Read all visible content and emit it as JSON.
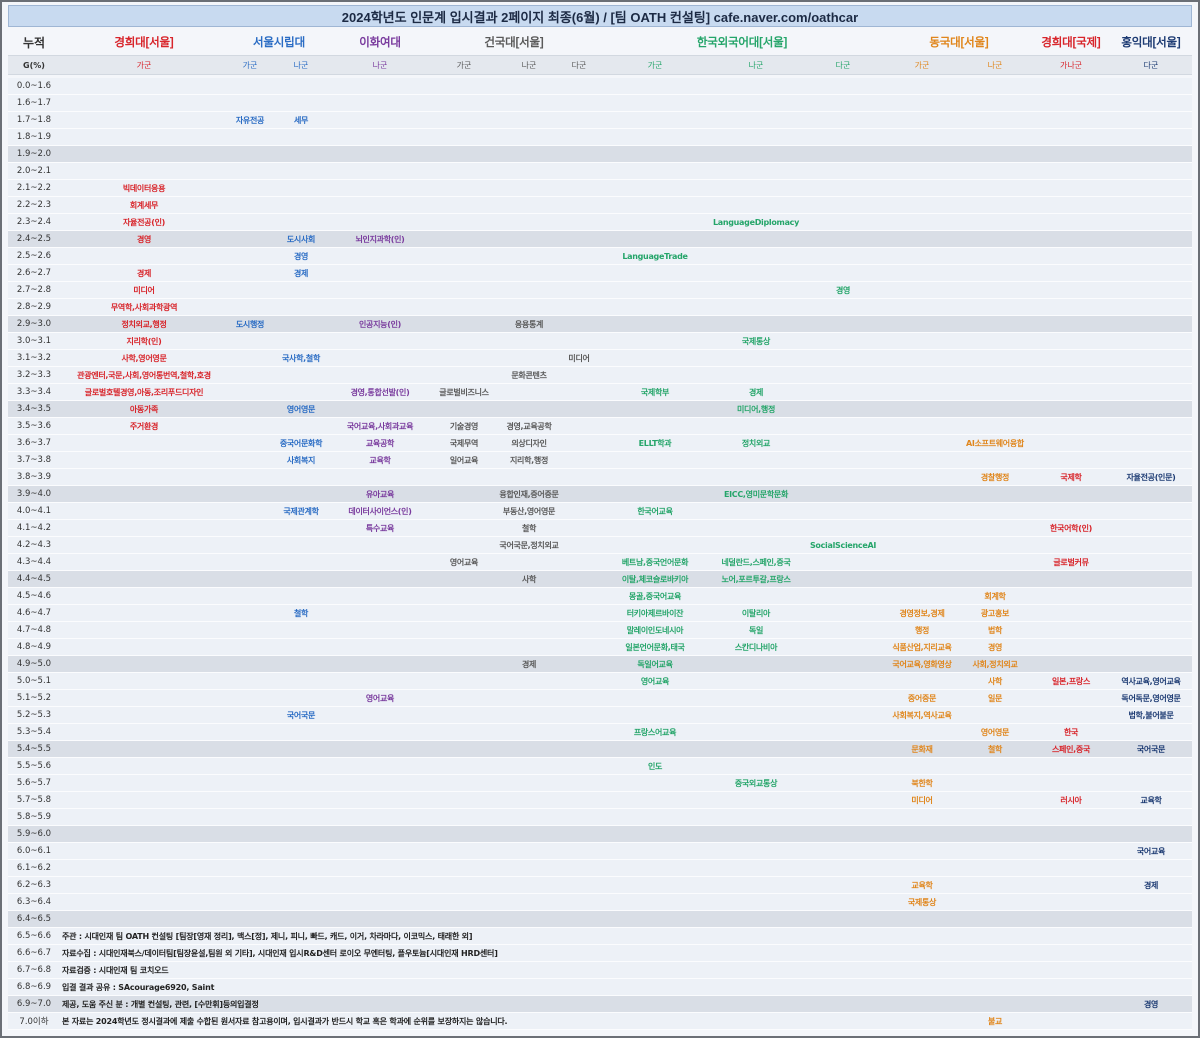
{
  "title": "2024학년도 인문계 입시결과 2페이지 최종(6월) / [팀 OATH 컨설팅] cafe.naver.com/oathcar",
  "header": {
    "cumulative": "누적",
    "g_label": "G(%)"
  },
  "universities": [
    {
      "name": "경희대[서울]",
      "color": "#d8252b",
      "groups": [
        "가군"
      ]
    },
    {
      "name": "서울시립대",
      "color": "#2a6cc4",
      "groups": [
        "가군",
        "나군"
      ]
    },
    {
      "name": "이화여대",
      "color": "#7a3c9e",
      "groups": [
        "나군"
      ]
    },
    {
      "name": "건국대[서울]",
      "color": "#5a5a5a",
      "groups": [
        "가군",
        "나군",
        "다군"
      ]
    },
    {
      "name": "한국외국어대[서울]",
      "color": "#25a56a",
      "groups": [
        "가군",
        "나군",
        "다군"
      ]
    },
    {
      "name": "동국대[서울]",
      "color": "#e0861c",
      "groups": [
        "가군",
        "나군"
      ]
    },
    {
      "name": "경희대[국제]",
      "color": "#d8252b",
      "groups": [
        "가나군"
      ]
    },
    {
      "name": "홍익대[서울]",
      "color": "#1d3b73",
      "groups": [
        "다군"
      ]
    }
  ],
  "rows": [
    {
      "range": "0.0~1.6",
      "cells": {}
    },
    {
      "range": "1.6~1.7",
      "cells": {}
    },
    {
      "range": "1.7~1.8",
      "cells": {
        "2": "자유전공",
        "3": "세무"
      }
    },
    {
      "range": "1.8~1.9",
      "cells": {}
    },
    {
      "range": "1.9~2.0",
      "cells": {}
    },
    {
      "range": "2.0~2.1",
      "cells": {}
    },
    {
      "range": "2.1~2.2",
      "cells": {
        "1": "빅데이터응용"
      }
    },
    {
      "range": "2.2~2.3",
      "cells": {
        "1": "회계세무"
      }
    },
    {
      "range": "2.3~2.4",
      "cells": {
        "1": "자율전공(인)",
        "9": "LanguageDiplomacy"
      }
    },
    {
      "range": "2.4~2.5",
      "cells": {
        "1": "경영",
        "3": "도시사회",
        "4": "뇌인지과학(인)"
      }
    },
    {
      "range": "2.5~2.6",
      "cells": {
        "3": "경영",
        "8": "LanguageTrade"
      }
    },
    {
      "range": "2.6~2.7",
      "cells": {
        "1": "경제",
        "3": "경제"
      }
    },
    {
      "range": "2.7~2.8",
      "cells": {
        "1": "미디어",
        "10": "경영"
      }
    },
    {
      "range": "2.8~2.9",
      "cells": {
        "1": "무역학,사회과학광역"
      }
    },
    {
      "range": "2.9~3.0",
      "cells": {
        "1": "정치외교,행정",
        "2": "도시행정",
        "4": "인공지능(인)",
        "6": "응용통계"
      }
    },
    {
      "range": "3.0~3.1",
      "cells": {
        "1": "지리학(인)",
        "9": "국제통상"
      }
    },
    {
      "range": "3.1~3.2",
      "cells": {
        "1": "사학,영어영문",
        "3": "국사학,철학",
        "7": "미디어"
      }
    },
    {
      "range": "3.2~3.3",
      "cells": {
        "1": "관광엔터,국문,사회,영어통번역,철학,호경",
        "6": "문화콘텐츠"
      }
    },
    {
      "range": "3.3~3.4",
      "cells": {
        "1": "글로벌호텔경영,아동,조리푸드디자인",
        "4": "경영,통합선발(인)",
        "5": "글로벌비즈니스",
        "8": "국제학부",
        "9": "경제"
      }
    },
    {
      "range": "3.4~3.5",
      "cells": {
        "1": "아동가족",
        "3": "영어영문",
        "9": "미디어,행정"
      }
    },
    {
      "range": "3.5~3.6",
      "cells": {
        "1": "주거환경",
        "4": "국어교육,사회과교육",
        "5": "기술경영",
        "6": "경영,교육공학"
      }
    },
    {
      "range": "3.6~3.7",
      "cells": {
        "3": "중국어문화학",
        "4": "교육공학",
        "5": "국제무역",
        "6": "의상디자인",
        "8": "ELLT학과",
        "9": "정치외교",
        "12": "AI소프트웨어융합"
      }
    },
    {
      "range": "3.7~3.8",
      "cells": {
        "3": "사회복지",
        "4": "교육학",
        "5": "일어교육",
        "6": "지리학,행정"
      }
    },
    {
      "range": "3.8~3.9",
      "cells": {
        "12": "경찰행정",
        "13": "국제학",
        "14": "자율전공(인문)"
      }
    },
    {
      "range": "3.9~4.0",
      "cells": {
        "4": "유아교육",
        "6": "융합인재,중어중문",
        "9": "EICC,영미문학문화"
      }
    },
    {
      "range": "4.0~4.1",
      "cells": {
        "3": "국제관계학",
        "4": "데이터사이언스(인)",
        "6": "부동산,영어영문",
        "8": "한국어교육"
      }
    },
    {
      "range": "4.1~4.2",
      "cells": {
        "4": "특수교육",
        "6": "철학",
        "13": "한국어학(인)"
      }
    },
    {
      "range": "4.2~4.3",
      "cells": {
        "6": "국어국문,정치외교",
        "10": "SocialScienceAI"
      }
    },
    {
      "range": "4.3~4.4",
      "cells": {
        "5": "영어교육",
        "8": "베트남,중국언어문화",
        "9": "네덜란드,스페인,중국",
        "13": "글로벌커뮤"
      }
    },
    {
      "range": "4.4~4.5",
      "cells": {
        "6": "사학",
        "8": "이탈,체코슬로바키아",
        "9": "노어,포르투갈,프랑스"
      }
    },
    {
      "range": "4.5~4.6",
      "cells": {
        "8": "몽골,중국어교육",
        "12": "회계학"
      }
    },
    {
      "range": "4.6~4.7",
      "cells": {
        "3": "철학",
        "8": "터키아제르바이잔",
        "9": "이탈리아",
        "11": "경영정보,경제",
        "12": "광고홍보"
      }
    },
    {
      "range": "4.7~4.8",
      "cells": {
        "8": "말레이인도네시아",
        "9": "독일",
        "11": "행정",
        "12": "법학"
      }
    },
    {
      "range": "4.8~4.9",
      "cells": {
        "8": "일본언어문화,태국",
        "9": "스칸디나비아",
        "11": "식품산업,지리교육",
        "12": "경영"
      }
    },
    {
      "range": "4.9~5.0",
      "cells": {
        "6": "경제",
        "8": "독일어교육",
        "11": "국어교육,영화영상",
        "12": "사회,정치외교"
      }
    },
    {
      "range": "5.0~5.1",
      "cells": {
        "8": "영어교육",
        "12": "사학",
        "13": "일본,프랑스",
        "14": "역사교육,영어교육"
      }
    },
    {
      "range": "5.1~5.2",
      "cells": {
        "4": "영어교육",
        "11": "중어중문",
        "12": "일문",
        "14": "독어독문,영어영문"
      }
    },
    {
      "range": "5.2~5.3",
      "cells": {
        "3": "국어국문",
        "11": "사회복지,역사교육",
        "14": "법학,불어불문"
      }
    },
    {
      "range": "5.3~5.4",
      "cells": {
        "8": "프랑스어교육",
        "12": "영어영문",
        "13": "한국"
      }
    },
    {
      "range": "5.4~5.5",
      "cells": {
        "11": "문화재",
        "12": "철학",
        "13": "스페인,중국",
        "14": "국어국문"
      }
    },
    {
      "range": "5.5~5.6",
      "cells": {
        "8": "인도"
      }
    },
    {
      "range": "5.6~5.7",
      "cells": {
        "9": "중국외교통상",
        "11": "북한학"
      }
    },
    {
      "range": "5.7~5.8",
      "cells": {
        "11": "미디어",
        "13": "러시아",
        "14": "교육학"
      }
    },
    {
      "range": "5.8~5.9",
      "cells": {}
    },
    {
      "range": "5.9~6.0",
      "cells": {}
    },
    {
      "range": "6.0~6.1",
      "cells": {
        "14": "국어교육"
      }
    },
    {
      "range": "6.1~6.2",
      "cells": {}
    },
    {
      "range": "6.2~6.3",
      "cells": {
        "11": "교육학",
        "14": "경제"
      }
    },
    {
      "range": "6.3~6.4",
      "cells": {
        "11": "국제통상"
      }
    },
    {
      "range": "6.4~6.5",
      "cells": {}
    },
    {
      "range": "6.5~6.6",
      "cells": {},
      "note": "주관 : 시대인재 팀 OATH 컨설팅 [팀장[영재 정리], 맥스[정], 제니, 피니, 빠드, 캐드, 이거, 차라마다, 이코믹스, 태래한 외]"
    },
    {
      "range": "6.6~6.7",
      "cells": {},
      "note": "자료수집 : 시대인재북스/데이터팀[팀장윤설,팀원 외 기타], 시대인재 입시R&D센터 로이오 무엔터팅, 플우토늄[시대인재 HRD센터]"
    },
    {
      "range": "6.7~6.8",
      "cells": {},
      "note": "자료검증 : 시대인재 팀 코치오드"
    },
    {
      "range": "6.8~6.9",
      "cells": {},
      "note": "입결 결과 공유 : SAcourage6920, Saint"
    },
    {
      "range": "6.9~7.0",
      "cells": {
        "14": "경영"
      },
      "note": "제공, 도움 주신 분 : 개별 컨설팅, 관련, [수만휘]등의입결정"
    },
    {
      "range": "7.0이하",
      "cells": {
        "12": "불교"
      },
      "note": "본 자료는 2024학년도 정시결과에 제출 수합된 원서자료 참고용이며, 입시결과가 반드시 학교 혹은 학과에 순위를 보장하지는 않습니다."
    }
  ]
}
